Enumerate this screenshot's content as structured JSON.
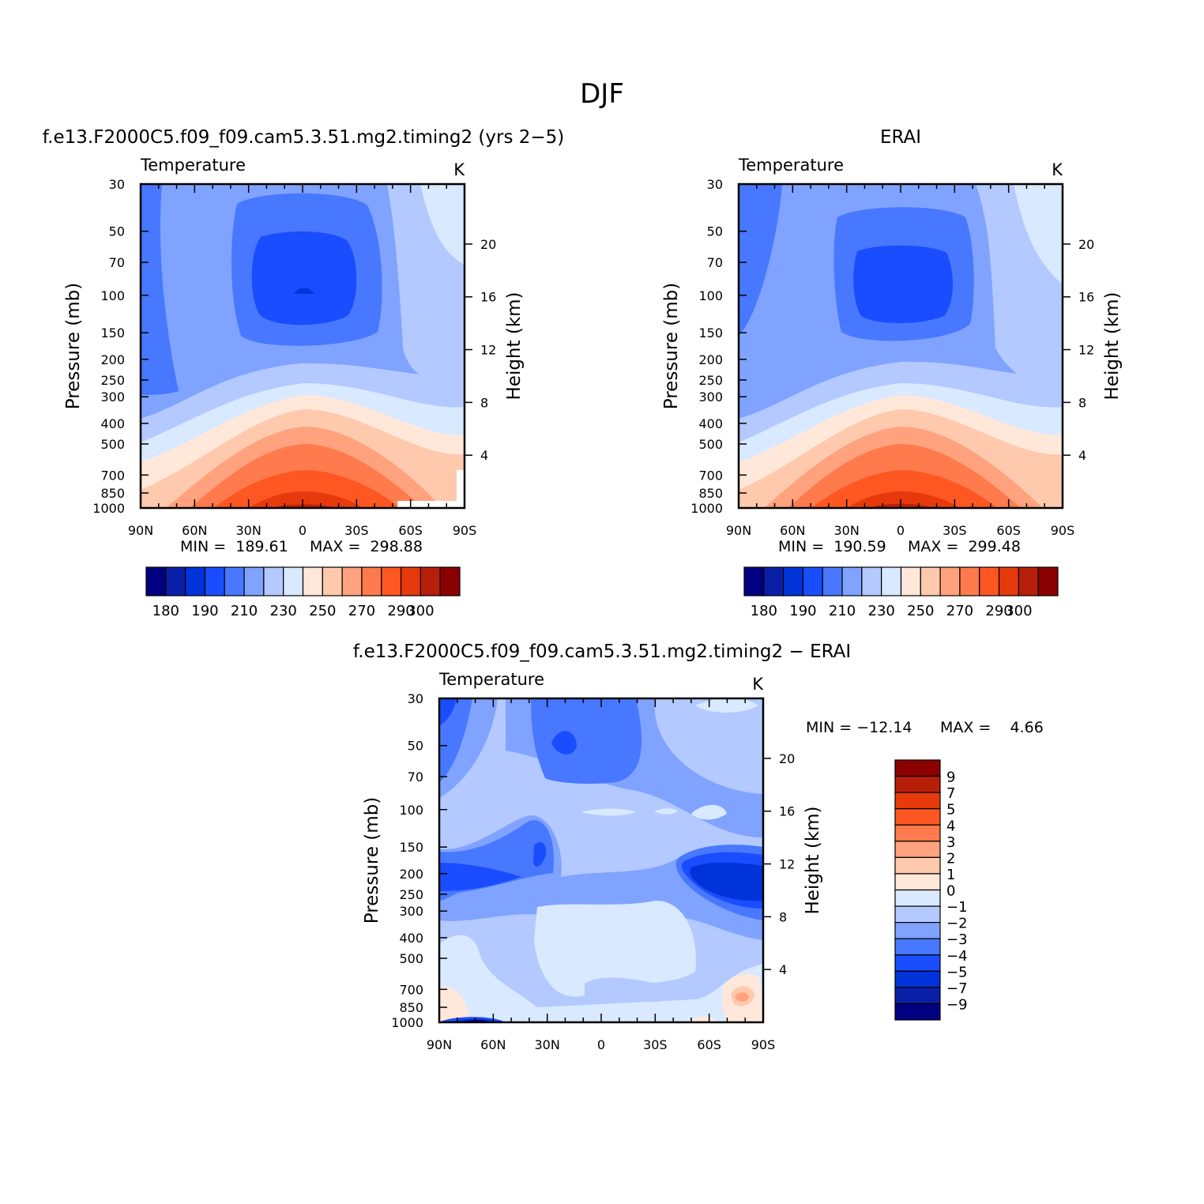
{
  "figure": {
    "title": "DJF"
  },
  "chart_data": [
    {
      "type": "heatmap",
      "panel_title": "f.e13.F2000C5.f09_f09.cam5.3.51.mg2.timing2 (yrs 2−5)",
      "subtitle": "Temperature",
      "units": "K",
      "xlabel": "",
      "ylabel": "Pressure (mb)",
      "ylabel_right": "Height (km)",
      "x_ticks": [
        "90N",
        "60N",
        "30N",
        "0",
        "30S",
        "60S",
        "90S"
      ],
      "y_ticks": [
        "30",
        "50",
        "70",
        "100",
        "150",
        "200",
        "250",
        "300",
        "400",
        "500",
        "700",
        "850",
        "1000"
      ],
      "height_ticks": [
        "20",
        "16",
        "12",
        "8",
        "4"
      ],
      "ylim": [
        1000,
        30
      ],
      "y_scale": "log",
      "min_label": "MIN =  189.61",
      "max_label": "MAX =  298.88",
      "min": 189.61,
      "max": 298.88,
      "contour_levels": [
        180,
        185,
        190,
        200,
        210,
        220,
        230,
        240,
        250,
        260,
        270,
        280,
        290,
        295,
        300
      ],
      "colorbar_labels": [
        "180",
        "190",
        "210",
        "230",
        "250",
        "270",
        "290",
        "300"
      ],
      "colorbar_orientation": "horizontal"
    },
    {
      "type": "heatmap",
      "panel_title": "ERAI",
      "subtitle": "Temperature",
      "units": "K",
      "xlabel": "",
      "ylabel": "Pressure (mb)",
      "ylabel_right": "Height (km)",
      "x_ticks": [
        "90N",
        "60N",
        "30N",
        "0",
        "30S",
        "60S",
        "90S"
      ],
      "y_ticks": [
        "30",
        "50",
        "70",
        "100",
        "150",
        "200",
        "250",
        "300",
        "400",
        "500",
        "700",
        "850",
        "1000"
      ],
      "height_ticks": [
        "20",
        "16",
        "12",
        "8",
        "4"
      ],
      "ylim": [
        1000,
        30
      ],
      "y_scale": "log",
      "min_label": "MIN =  190.59",
      "max_label": "MAX =  299.48",
      "min": 190.59,
      "max": 299.48,
      "contour_levels": [
        180,
        185,
        190,
        200,
        210,
        220,
        230,
        240,
        250,
        260,
        270,
        280,
        290,
        295,
        300
      ],
      "colorbar_labels": [
        "180",
        "190",
        "210",
        "230",
        "250",
        "270",
        "290",
        "300"
      ],
      "colorbar_orientation": "horizontal"
    },
    {
      "type": "heatmap",
      "panel_title": "f.e13.F2000C5.f09_f09.cam5.3.51.mg2.timing2 − ERAI",
      "subtitle": "Temperature",
      "units": "K",
      "xlabel": "",
      "ylabel": "Pressure (mb)",
      "ylabel_right": "Height (km)",
      "x_ticks": [
        "90N",
        "60N",
        "30N",
        "0",
        "30S",
        "60S",
        "90S"
      ],
      "y_ticks": [
        "30",
        "50",
        "70",
        "100",
        "150",
        "200",
        "250",
        "300",
        "400",
        "500",
        "700",
        "850",
        "1000"
      ],
      "height_ticks": [
        "20",
        "16",
        "12",
        "8",
        "4"
      ],
      "ylim": [
        1000,
        30
      ],
      "y_scale": "log",
      "min_label": "MIN = −12.14",
      "max_label": "MAX =    4.66",
      "min": -12.14,
      "max": 4.66,
      "contour_levels": [
        -9,
        -7,
        -5,
        -4,
        -3,
        -2,
        -1,
        0,
        1,
        2,
        3,
        4,
        5,
        7,
        9
      ],
      "colorbar_labels": [
        "9",
        "7",
        "5",
        "4",
        "3",
        "2",
        "1",
        "0",
        "−1",
        "−2",
        "−3",
        "−4",
        "−5",
        "−7",
        "−9"
      ],
      "colorbar_orientation": "vertical"
    }
  ],
  "palette": [
    "#000080",
    "#0a1fa8",
    "#0033d9",
    "#1a4dff",
    "#4778ff",
    "#7fa3ff",
    "#b3c9ff",
    "#d9e9ff",
    "#ffe8da",
    "#ffc9ad",
    "#ffa27d",
    "#ff7a4d",
    "#ff5722",
    "#e63a0c",
    "#b81f0a",
    "#8b0000"
  ]
}
